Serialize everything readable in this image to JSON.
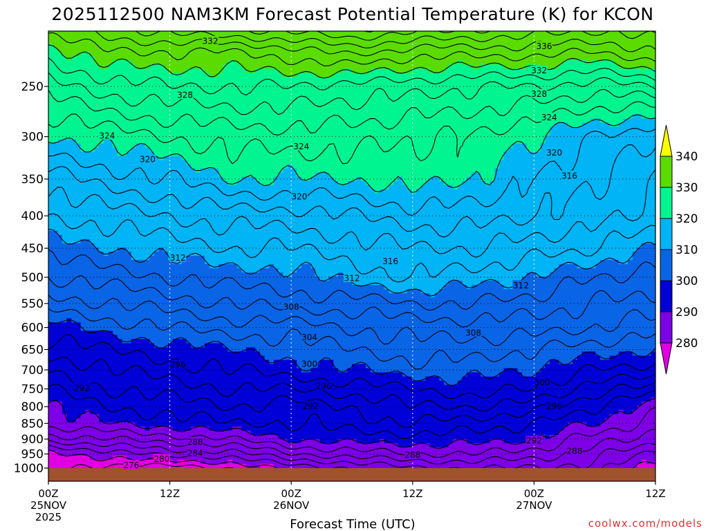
{
  "chart_data": {
    "type": "contour",
    "title": "2025112500 NAM3KM Forecast Potential Temperature (K) for KCON",
    "xlabel": "Forecast Time (UTC)",
    "ylabel": "",
    "credit": "coolwx.com/models",
    "y_axis": {
      "unit": "hPa",
      "scale": "log",
      "range": [
        1000,
        200
      ],
      "ticks": [
        250,
        300,
        350,
        400,
        450,
        500,
        550,
        600,
        650,
        700,
        750,
        800,
        850,
        900,
        950,
        1000
      ]
    },
    "x_axis": {
      "range_hours": [
        0,
        60
      ],
      "ticks": [
        {
          "hour": 0,
          "lines": [
            "00Z",
            "25NOV",
            "2025"
          ]
        },
        {
          "hour": 12,
          "lines": [
            "12Z"
          ]
        },
        {
          "hour": 24,
          "lines": [
            "00Z",
            "26NOV"
          ]
        },
        {
          "hour": 36,
          "lines": [
            "12Z"
          ]
        },
        {
          "hour": 48,
          "lines": [
            "00Z",
            "27NOV"
          ]
        },
        {
          "hour": 60,
          "lines": [
            "12Z"
          ]
        }
      ]
    },
    "colorbar": {
      "ticks": [
        280,
        290,
        300,
        310,
        320,
        330,
        340
      ],
      "bands": [
        {
          "max": 280,
          "color": "#e100e1"
        },
        {
          "max": 290,
          "color": "#7d00e6"
        },
        {
          "max": 300,
          "color": "#0000d7"
        },
        {
          "max": 310,
          "color": "#0a64e6"
        },
        {
          "max": 320,
          "color": "#00b4f5"
        },
        {
          "max": 330,
          "color": "#00f590"
        },
        {
          "max": 340,
          "color": "#5adc00"
        },
        {
          "max": 999,
          "color": "#ffff00"
        }
      ]
    },
    "ground_color": "#a0522d",
    "contour_interval": 2,
    "profile_anchor_hours": [
      0,
      6,
      12,
      18,
      24,
      30,
      36,
      42,
      48,
      54,
      60
    ],
    "profiles": [
      {
        "p": 1000,
        "theta": [
          279,
          277,
          277,
          278,
          281,
          282,
          284,
          284,
          284,
          283,
          279
        ]
      },
      {
        "p": 950,
        "theta": [
          279,
          281,
          283,
          283,
          286,
          287,
          288,
          288,
          287,
          285,
          281
        ]
      },
      {
        "p": 900,
        "theta": [
          285,
          286,
          287,
          288,
          290,
          291,
          291,
          291,
          290,
          287,
          285
        ]
      },
      {
        "p": 850,
        "theta": [
          289,
          290,
          291,
          292,
          292,
          293,
          294,
          293,
          292,
          290,
          287
        ]
      },
      {
        "p": 800,
        "theta": [
          290,
          292,
          293,
          294,
          293,
          294,
          296,
          296,
          295,
          292,
          289
        ]
      },
      {
        "p": 750,
        "theta": [
          292,
          294,
          295,
          296,
          296,
          297,
          298,
          299,
          298,
          295,
          293
        ]
      },
      {
        "p": 700,
        "theta": [
          294,
          296,
          297,
          298,
          299,
          300,
          301,
          301,
          300,
          298,
          297
        ]
      },
      {
        "p": 650,
        "theta": [
          297,
          298,
          299,
          300,
          301,
          302,
          303,
          303,
          302,
          301,
          300
        ]
      },
      {
        "p": 600,
        "theta": [
          299,
          301,
          302,
          303,
          303,
          304,
          305,
          305,
          305,
          304,
          303
        ]
      },
      {
        "p": 550,
        "theta": [
          303,
          304,
          305,
          306,
          307,
          307,
          308,
          308,
          307,
          306,
          305
        ]
      },
      {
        "p": 500,
        "theta": [
          306,
          307,
          308,
          309,
          309,
          311,
          312,
          311,
          310,
          308,
          307
        ]
      },
      {
        "p": 450,
        "theta": [
          309,
          310,
          311,
          312,
          312,
          313,
          314,
          314,
          313,
          312,
          310
        ]
      },
      {
        "p": 400,
        "theta": [
          312,
          313,
          314,
          315,
          315,
          316,
          317,
          317,
          316,
          315,
          313
        ]
      },
      {
        "p": 350,
        "theta": [
          315,
          317,
          318,
          320,
          320,
          320,
          321,
          320,
          318,
          316,
          314
        ]
      },
      {
        "p": 300,
        "theta": [
          320,
          321,
          322,
          323,
          323,
          323,
          322,
          322,
          320,
          318,
          316
        ]
      },
      {
        "p": 250,
        "theta": [
          325,
          327,
          328,
          328,
          328,
          327,
          327,
          326,
          326,
          325,
          326
        ]
      },
      {
        "p": 220,
        "theta": [
          329,
          332,
          332,
          332,
          333,
          335,
          333,
          333,
          333,
          332,
          334
        ]
      },
      {
        "p": 200,
        "theta": [
          334,
          336,
          338,
          339,
          340,
          341,
          340,
          339,
          338,
          337,
          338
        ]
      }
    ],
    "contour_labels": [
      {
        "text": "332",
        "hour": 16.0,
        "p": 212
      },
      {
        "text": "336",
        "hour": 49.0,
        "p": 216
      },
      {
        "text": "332",
        "hour": 48.5,
        "p": 236
      },
      {
        "text": "328",
        "hour": 13.5,
        "p": 258
      },
      {
        "text": "328",
        "hour": 48.5,
        "p": 257
      },
      {
        "text": "324",
        "hour": 49.5,
        "p": 280
      },
      {
        "text": "324",
        "hour": 5.8,
        "p": 299
      },
      {
        "text": "324",
        "hour": 25.0,
        "p": 311
      },
      {
        "text": "320",
        "hour": 9.8,
        "p": 326
      },
      {
        "text": "320",
        "hour": 50.0,
        "p": 318
      },
      {
        "text": "316",
        "hour": 51.5,
        "p": 346
      },
      {
        "text": "320",
        "hour": 24.8,
        "p": 373
      },
      {
        "text": "312",
        "hour": 12.8,
        "p": 466
      },
      {
        "text": "316",
        "hour": 33.8,
        "p": 472
      },
      {
        "text": "312",
        "hour": 30.0,
        "p": 502
      },
      {
        "text": "312",
        "hour": 46.7,
        "p": 515
      },
      {
        "text": "308",
        "hour": 24.0,
        "p": 557
      },
      {
        "text": "308",
        "hour": 42.0,
        "p": 612
      },
      {
        "text": "304",
        "hour": 25.8,
        "p": 622
      },
      {
        "text": "296",
        "hour": 12.8,
        "p": 687
      },
      {
        "text": "300",
        "hour": 25.8,
        "p": 685
      },
      {
        "text": "296",
        "hour": 27.2,
        "p": 743
      },
      {
        "text": "300",
        "hour": 48.8,
        "p": 732
      },
      {
        "text": "292",
        "hour": 3.3,
        "p": 748
      },
      {
        "text": "292",
        "hour": 25.9,
        "p": 799
      },
      {
        "text": "296",
        "hour": 50.0,
        "p": 799
      },
      {
        "text": "288",
        "hour": 14.5,
        "p": 910
      },
      {
        "text": "292",
        "hour": 48.0,
        "p": 906
      },
      {
        "text": "284",
        "hour": 14.5,
        "p": 947
      },
      {
        "text": "288",
        "hour": 52.0,
        "p": 940
      },
      {
        "text": "288",
        "hour": 36.0,
        "p": 954
      },
      {
        "text": "280",
        "hour": 11.2,
        "p": 968
      },
      {
        "text": "276",
        "hour": 8.2,
        "p": 990
      }
    ]
  }
}
